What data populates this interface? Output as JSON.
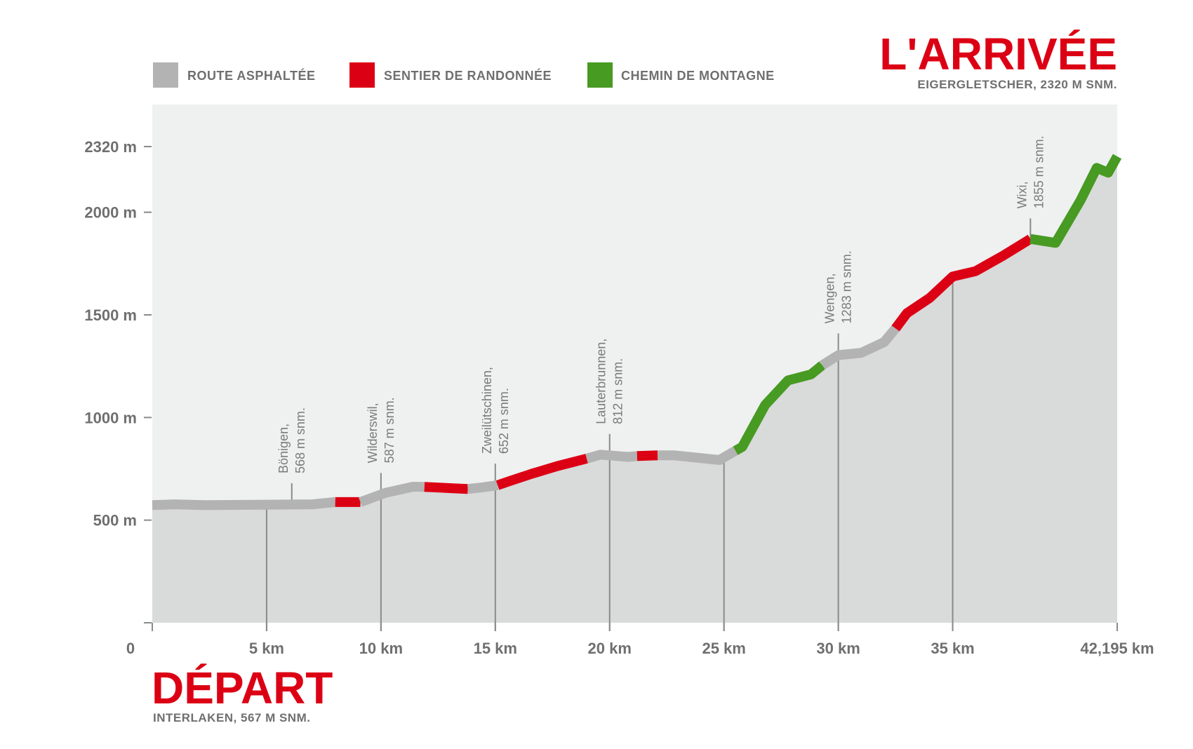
{
  "chart_data": {
    "type": "area",
    "title": "L'ARRIVÉE",
    "title_sub": "EIGERGLETSCHER, 2320 M SNM.",
    "start_title": "DÉPART",
    "start_sub": "INTERLAKEN, 567 M SNM.",
    "xlabel": "",
    "ylabel": "",
    "xlim": [
      0,
      42.195
    ],
    "ylim": [
      0,
      2525
    ],
    "x_ticks": [
      {
        "value": 0,
        "label": "0"
      },
      {
        "value": 5,
        "label": "5 km"
      },
      {
        "value": 10,
        "label": "10 km"
      },
      {
        "value": 15,
        "label": "15 km"
      },
      {
        "value": 20,
        "label": "20 km"
      },
      {
        "value": 25,
        "label": "25 km"
      },
      {
        "value": 30,
        "label": "30 km"
      },
      {
        "value": 35,
        "label": "35 km"
      },
      {
        "value": 42.195,
        "label": "42,195 km"
      }
    ],
    "y_ticks": [
      {
        "value": 0,
        "label": ""
      },
      {
        "value": 500,
        "label": "500 m"
      },
      {
        "value": 1000,
        "label": "1000 m"
      },
      {
        "value": 1500,
        "label": "1500 m"
      },
      {
        "value": 2000,
        "label": "2000 m"
      },
      {
        "value": 2320,
        "label": "2320 m"
      }
    ],
    "legend": [
      {
        "key": "road",
        "label": "ROUTE ASPHALTÉE",
        "color": "#b3b3b3"
      },
      {
        "key": "trail",
        "label": "SENTIER DE RANDONNÉE",
        "color": "#dc0014"
      },
      {
        "key": "mountain",
        "label": "CHEMIN DE MONTAGNE",
        "color": "#479a22"
      }
    ],
    "legend_position": "top-left",
    "profile": [
      [
        0,
        573
      ],
      [
        1,
        577
      ],
      [
        2.3,
        573
      ],
      [
        7.0,
        577
      ],
      [
        8.0,
        588
      ],
      [
        9.1,
        588
      ],
      [
        10.2,
        633
      ],
      [
        11.4,
        663
      ],
      [
        11.9,
        662
      ],
      [
        13.8,
        652
      ],
      [
        14.4,
        659
      ],
      [
        15.1,
        670
      ],
      [
        15.6,
        689
      ],
      [
        16.6,
        726
      ],
      [
        17.7,
        763
      ],
      [
        19.0,
        800
      ],
      [
        19.6,
        819
      ],
      [
        20.8,
        808
      ],
      [
        21.2,
        812
      ],
      [
        22.1,
        816
      ],
      [
        22.8,
        816
      ],
      [
        24.8,
        793
      ],
      [
        25.5,
        838
      ],
      [
        25.8,
        857
      ],
      [
        26.8,
        1061
      ],
      [
        27.8,
        1181
      ],
      [
        28.8,
        1210
      ],
      [
        29.3,
        1255
      ],
      [
        30.0,
        1304
      ],
      [
        31.0,
        1315
      ],
      [
        32.0,
        1367
      ],
      [
        32.5,
        1434
      ],
      [
        33.0,
        1508
      ],
      [
        34.0,
        1583
      ],
      [
        35.0,
        1687
      ],
      [
        36.0,
        1713
      ],
      [
        37.2,
        1788
      ],
      [
        38.4,
        1870
      ],
      [
        39.5,
        1851
      ],
      [
        40.6,
        2060
      ],
      [
        41.3,
        2216
      ],
      [
        41.8,
        2193
      ],
      [
        42.195,
        2272
      ]
    ],
    "segments": [
      {
        "from": 0,
        "to": 8.0,
        "type": "road"
      },
      {
        "from": 8.0,
        "to": 9.1,
        "type": "trail"
      },
      {
        "from": 9.1,
        "to": 11.9,
        "type": "road"
      },
      {
        "from": 11.9,
        "to": 13.8,
        "type": "trail"
      },
      {
        "from": 13.8,
        "to": 15.1,
        "type": "road"
      },
      {
        "from": 15.1,
        "to": 19.0,
        "type": "trail"
      },
      {
        "from": 19.0,
        "to": 21.2,
        "type": "road"
      },
      {
        "from": 21.2,
        "to": 22.1,
        "type": "trail"
      },
      {
        "from": 22.1,
        "to": 25.5,
        "type": "road"
      },
      {
        "from": 25.5,
        "to": 29.3,
        "type": "mountain"
      },
      {
        "from": 29.3,
        "to": 32.5,
        "type": "road"
      },
      {
        "from": 32.5,
        "to": 38.4,
        "type": "trail"
      },
      {
        "from": 38.4,
        "to": 42.195,
        "type": "mountain"
      }
    ],
    "annotations": [
      {
        "km": 6.1,
        "name": "Bönigen,",
        "elevation": "568 m snm.",
        "label_elev": 680
      },
      {
        "km": 10.0,
        "name": "Wilderswil,",
        "elevation": "587 m snm.",
        "label_elev": 730
      },
      {
        "km": 15.0,
        "name": "Zweilütschinen,",
        "elevation": "652 m snm.",
        "label_elev": 775
      },
      {
        "km": 20.0,
        "name": "Lauterbrunnen,",
        "elevation": "812 m snm.",
        "label_elev": 920
      },
      {
        "km": 30.0,
        "name": "Wengen,",
        "elevation": "1283 m snm.",
        "label_elev": 1410
      },
      {
        "km": 38.4,
        "name": "Wixi,",
        "elevation": "1855 m snm.",
        "label_elev": 1970
      }
    ],
    "gridlines_km": [
      5,
      10,
      15,
      20,
      25,
      30,
      35
    ]
  }
}
